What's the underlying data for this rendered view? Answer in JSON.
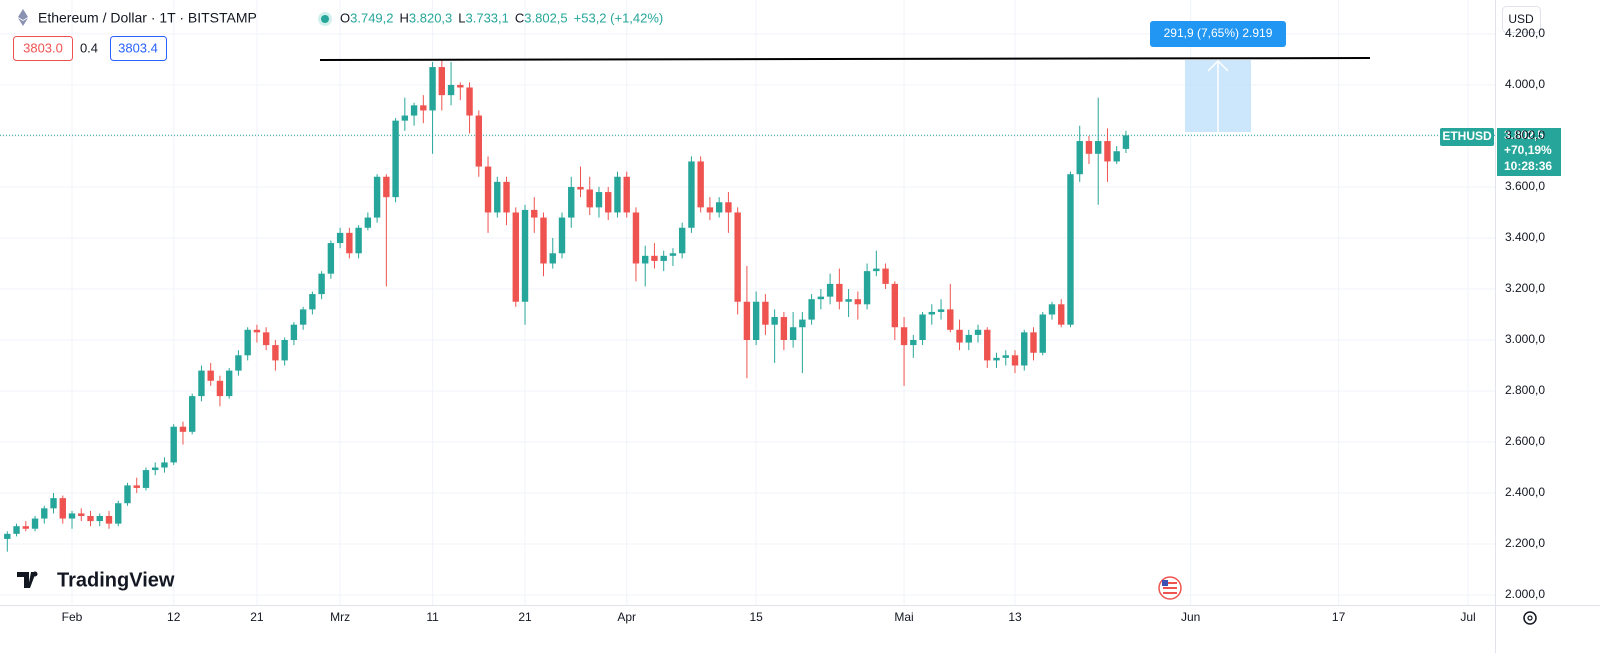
{
  "chart_data": {
    "type": "candlestick",
    "title": "Ethereum / Dollar · 1T · BITSTAMP",
    "readout": [
      "O",
      "3.749,2",
      "H",
      "3.820,3",
      "L",
      "3.733,1",
      "C",
      "3.802,5",
      "+53,2 (+1,42%)"
    ],
    "bid": "3803.0",
    "spread": "0.4",
    "ask": "3803.4",
    "currency": "USD",
    "symbol_label": "ETHUSD",
    "price_label": "3.802,5",
    "change_label": "+70,19%",
    "countdown": "10:28:36",
    "annotation": "291,9 (7,65%) 2.919",
    "brand": "TradingView",
    "up_color": "#26a69a",
    "down_color": "#ef5350",
    "grid": true,
    "ylim": [
      1961,
      4333
    ],
    "yticks": [
      {
        "value": 2000,
        "label": "2.000,0"
      },
      {
        "value": 2200,
        "label": "2.200,0"
      },
      {
        "value": 2400,
        "label": "2.400,0"
      },
      {
        "value": 2600,
        "label": "2.600,0"
      },
      {
        "value": 2800,
        "label": "2.800,0"
      },
      {
        "value": 3000,
        "label": "3.000,0"
      },
      {
        "value": 3200,
        "label": "3.200,0"
      },
      {
        "value": 3400,
        "label": "3.400,0"
      },
      {
        "value": 3600,
        "label": "3.600,0"
      },
      {
        "value": 3800,
        "label": "3.800,0"
      },
      {
        "value": 4000,
        "label": "4.000,0"
      },
      {
        "value": 4200,
        "label": "4.200,0"
      }
    ],
    "categories": [
      null,
      null,
      null,
      null,
      null,
      null,
      null,
      "Feb",
      null,
      null,
      null,
      null,
      null,
      null,
      null,
      null,
      null,
      null,
      "12",
      null,
      null,
      null,
      null,
      null,
      null,
      null,
      null,
      "21",
      null,
      null,
      null,
      null,
      null,
      null,
      null,
      null,
      "Mrz",
      null,
      null,
      null,
      null,
      null,
      null,
      null,
      null,
      null,
      "11",
      null,
      null,
      null,
      null,
      null,
      null,
      null,
      null,
      null,
      "21",
      null,
      null,
      null,
      null,
      null,
      null,
      null,
      null,
      null,
      null,
      "Apr",
      null,
      null,
      null,
      null,
      null,
      null,
      null,
      null,
      null,
      null,
      null,
      null,
      null,
      "15",
      null,
      null,
      null,
      null,
      null,
      null,
      null,
      null,
      null,
      null,
      null,
      null,
      null,
      null,
      null,
      "Mai",
      null,
      null,
      null,
      null,
      null,
      null,
      null,
      null,
      null,
      null,
      null,
      "13",
      null,
      null,
      null,
      null,
      null,
      null,
      null,
      null,
      null,
      null,
      null,
      null,
      null,
      null,
      null,
      null,
      null,
      null,
      "Jun",
      null,
      null,
      null,
      null,
      null,
      null,
      null,
      null,
      null,
      null,
      null,
      null,
      null,
      null,
      null,
      "17",
      null,
      null,
      null,
      null,
      null,
      null,
      null,
      null,
      null,
      null,
      null,
      null,
      null,
      "Jul"
    ],
    "open": [
      2220,
      2240,
      2270,
      2260,
      2300,
      2340,
      2380,
      2300,
      2320,
      2310,
      2290,
      2310,
      2280,
      2360,
      2430,
      2420,
      2490,
      2500,
      2520,
      2660,
      2640,
      2780,
      2880,
      2840,
      2780,
      2880,
      2940,
      3040,
      3030,
      2980,
      2920,
      3000,
      3060,
      3120,
      3180,
      3260,
      3380,
      3420,
      3340,
      3440,
      3480,
      3640,
      3560,
      3860,
      3880,
      3920,
      3900,
      4070,
      3960,
      4000,
      3990,
      3880,
      3680,
      3500,
      3620,
      3500,
      3150,
      3510,
      3480,
      3300,
      3340,
      3480,
      3600,
      3590,
      3520,
      3580,
      3500,
      3640,
      3500,
      3300,
      3330,
      3310,
      3330,
      3340,
      3440,
      3700,
      3520,
      3500,
      3540,
      3500,
      3150,
      3000,
      3150,
      3060,
      3090,
      3000,
      3050,
      3080,
      3160,
      3170,
      3220,
      3150,
      3160,
      3140,
      3270,
      3280,
      3220,
      3050,
      2980,
      3000,
      3100,
      3110,
      3120,
      3040,
      2990,
      3020,
      3040,
      2920,
      2930,
      2940,
      2900,
      3030,
      2950,
      3100,
      3140,
      3060,
      3650,
      3780,
      3730,
      3780,
      3700,
      3749.2,
      null,
      null,
      null,
      null,
      null,
      null,
      null,
      null,
      null,
      null,
      null,
      null,
      null,
      null,
      null,
      null,
      null,
      null,
      null,
      null,
      null,
      null,
      null,
      null,
      null,
      null,
      null,
      null,
      null,
      null,
      null,
      null,
      null,
      null,
      null,
      null,
      null
    ],
    "high": [
      2250,
      2280,
      2290,
      2310,
      2350,
      2400,
      2390,
      2330,
      2340,
      2330,
      2320,
      2330,
      2370,
      2440,
      2460,
      2500,
      2520,
      2540,
      2670,
      2680,
      2790,
      2900,
      2910,
      2860,
      2890,
      2960,
      3050,
      3060,
      3050,
      3000,
      3010,
      3070,
      3130,
      3190,
      3270,
      3390,
      3440,
      3440,
      3450,
      3500,
      3650,
      3650,
      3870,
      3950,
      3930,
      3960,
      4090,
      4100,
      4090,
      4010,
      4010,
      3900,
      3720,
      3640,
      3640,
      3520,
      3530,
      3560,
      3500,
      3400,
      3500,
      3640,
      3680,
      3640,
      3600,
      3600,
      3660,
      3660,
      3520,
      3370,
      3380,
      3350,
      3360,
      3460,
      3720,
      3720,
      3560,
      3560,
      3580,
      3520,
      3290,
      3190,
      3180,
      3120,
      3110,
      3110,
      3110,
      3180,
      3200,
      3260,
      3280,
      3200,
      3190,
      3300,
      3350,
      3300,
      3230,
      3090,
      3020,
      3110,
      3140,
      3160,
      3220,
      3080,
      3040,
      3060,
      3050,
      2950,
      2960,
      2960,
      3040,
      3050,
      3110,
      3150,
      3160,
      3660,
      3840,
      3800,
      3950,
      3830,
      3760,
      3820.3,
      null,
      null,
      null,
      null,
      null,
      null,
      null,
      null,
      null,
      null,
      null,
      null,
      null,
      null,
      null,
      null,
      null,
      null,
      null,
      null,
      null,
      null,
      null,
      null,
      null,
      null,
      null,
      null,
      null,
      null,
      null,
      null,
      null,
      null,
      null,
      null,
      null
    ],
    "low": [
      2170,
      2230,
      2250,
      2250,
      2280,
      2320,
      2280,
      2260,
      2290,
      2270,
      2270,
      2260,
      2270,
      2350,
      2400,
      2410,
      2470,
      2480,
      2510,
      2590,
      2630,
      2760,
      2820,
      2740,
      2770,
      2860,
      2920,
      2990,
      2960,
      2880,
      2900,
      2980,
      3040,
      3100,
      3160,
      3240,
      3360,
      3320,
      3320,
      3430,
      3460,
      3210,
      3540,
      3820,
      3840,
      3850,
      3730,
      3900,
      3920,
      3940,
      3810,
      3640,
      3420,
      3480,
      3450,
      3130,
      3060,
      3420,
      3250,
      3280,
      3320,
      3440,
      3560,
      3490,
      3480,
      3470,
      3480,
      3480,
      3230,
      3210,
      3280,
      3270,
      3290,
      3320,
      3420,
      3500,
      3470,
      3480,
      3420,
      3100,
      2850,
      2980,
      3020,
      2910,
      2960,
      2970,
      2870,
      3060,
      3120,
      3140,
      3120,
      3090,
      3080,
      3120,
      3250,
      3200,
      3000,
      2820,
      2930,
      2980,
      3060,
      3080,
      3030,
      2960,
      2960,
      2990,
      2890,
      2890,
      2900,
      2870,
      2880,
      2920,
      2940,
      3080,
      3050,
      3050,
      3620,
      3690,
      3530,
      3620,
      3690,
      3733.1,
      null,
      null,
      null,
      null,
      null,
      null,
      null,
      null,
      null,
      null,
      null,
      null,
      null,
      null,
      null,
      null,
      null,
      null,
      null,
      null,
      null,
      null,
      null,
      null,
      null,
      null,
      null,
      null,
      null,
      null,
      null,
      null,
      null,
      null,
      null,
      null,
      null
    ],
    "close": [
      2240,
      2270,
      2260,
      2300,
      2340,
      2380,
      2300,
      2320,
      2310,
      2290,
      2310,
      2280,
      2360,
      2430,
      2420,
      2490,
      2500,
      2520,
      2660,
      2640,
      2780,
      2880,
      2840,
      2780,
      2880,
      2940,
      3040,
      3030,
      2980,
      2920,
      3000,
      3060,
      3120,
      3180,
      3260,
      3380,
      3420,
      3340,
      3440,
      3480,
      3640,
      3560,
      3860,
      3880,
      3920,
      3900,
      4070,
      3960,
      4000,
      3990,
      3880,
      3680,
      3500,
      3620,
      3500,
      3150,
      3510,
      3480,
      3300,
      3340,
      3480,
      3600,
      3590,
      3520,
      3580,
      3500,
      3640,
      3500,
      3300,
      3330,
      3310,
      3330,
      3340,
      3440,
      3700,
      3520,
      3500,
      3540,
      3500,
      3150,
      3000,
      3150,
      3060,
      3090,
      3000,
      3050,
      3080,
      3160,
      3170,
      3220,
      3150,
      3160,
      3140,
      3270,
      3280,
      3220,
      3050,
      2980,
      3000,
      3100,
      3110,
      3120,
      3040,
      2990,
      3020,
      3040,
      2920,
      2930,
      2940,
      2900,
      3030,
      2950,
      3100,
      3140,
      3060,
      3650,
      3780,
      3730,
      3780,
      3700,
      3740,
      3802.5,
      null,
      null,
      null,
      null,
      null,
      null,
      null,
      null,
      null,
      null,
      null,
      null,
      null,
      null,
      null,
      null,
      null,
      null,
      null,
      null,
      null,
      null,
      null,
      null,
      null,
      null,
      null,
      null,
      null,
      null,
      null,
      null,
      null,
      null,
      null,
      null,
      null
    ]
  }
}
